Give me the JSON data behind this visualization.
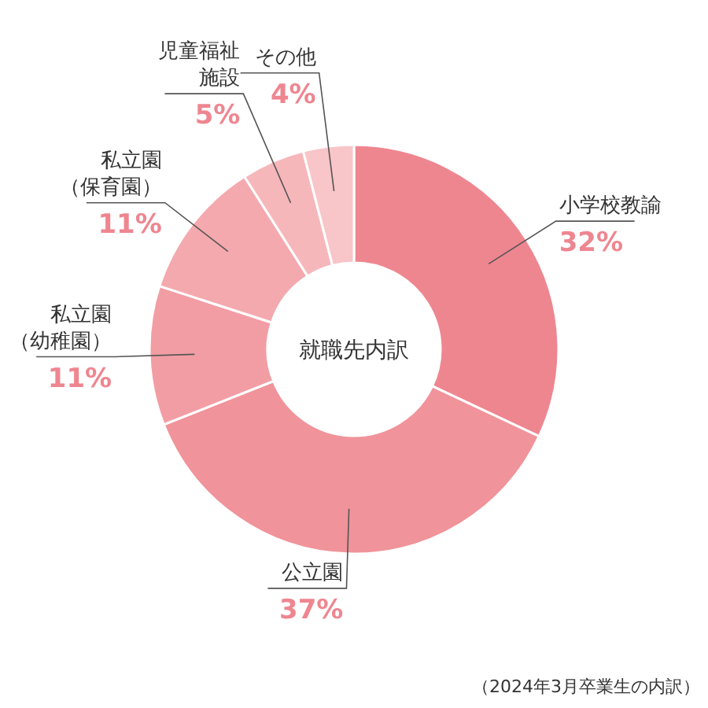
{
  "chart_data": {
    "type": "donut",
    "title": "就職先内訳",
    "categories": [
      "小学校教諭",
      "公立園",
      "私立園（幼稚園）",
      "私立園（保育園）",
      "児童福祉施設",
      "その他"
    ],
    "values": [
      32,
      37,
      11,
      11,
      5,
      4
    ],
    "colors": [
      "#ee8690",
      "#f0939a",
      "#f29da4",
      "#f4a9ae",
      "#f6b7bb",
      "#f8c5c8"
    ],
    "value_labels": [
      "32%",
      "37%",
      "11%",
      "11%",
      "5%",
      "4%"
    ],
    "annotations": [
      "（2024年3月卒業生の内訳）"
    ]
  }
}
